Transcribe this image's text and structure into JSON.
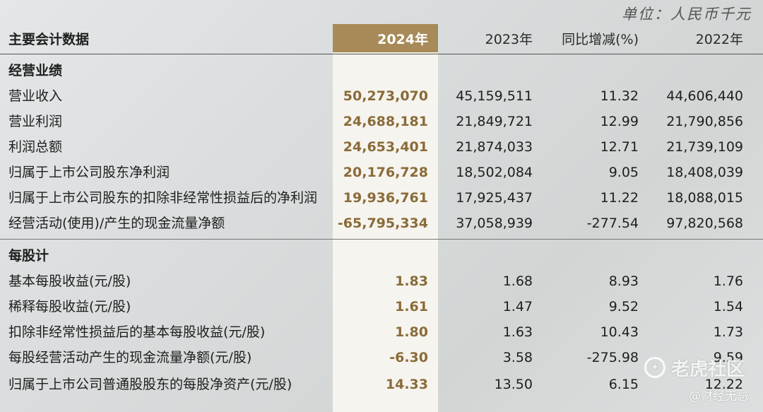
{
  "unit": "单位：人民币千元",
  "header": {
    "label": "主要会计数据",
    "col_2024": "2024年",
    "col_2023": "2023年",
    "col_yoy": "同比增减(%)",
    "col_2022": "2022年"
  },
  "sections": [
    {
      "title": "经营业绩",
      "rows": [
        {
          "label": "营业收入",
          "v2024": "50,273,070",
          "v2023": "45,159,511",
          "yoy": "11.32",
          "v2022": "44,606,440"
        },
        {
          "label": "营业利润",
          "v2024": "24,688,181",
          "v2023": "21,849,721",
          "yoy": "12.99",
          "v2022": "21,790,856"
        },
        {
          "label": "利润总额",
          "v2024": "24,653,401",
          "v2023": "21,874,033",
          "yoy": "12.71",
          "v2022": "21,739,109"
        },
        {
          "label": "归属于上市公司股东净利润",
          "v2024": "20,176,728",
          "v2023": "18,502,084",
          "yoy": "9.05",
          "v2022": "18,408,039"
        },
        {
          "label": "归属于上市公司股东的扣除非经常性损益后的净利润",
          "v2024": "19,936,761",
          "v2023": "17,925,437",
          "yoy": "11.22",
          "v2022": "18,088,015"
        },
        {
          "label": "经营活动(使用)/产生的现金流量净额",
          "v2024": "-65,795,334",
          "v2023": "37,058,939",
          "yoy": "-277.54",
          "v2022": "97,820,568"
        }
      ]
    },
    {
      "title": "每股计",
      "rows": [
        {
          "label": "基本每股收益(元/股)",
          "v2024": "1.83",
          "v2023": "1.68",
          "yoy": "8.93",
          "v2022": "1.76"
        },
        {
          "label": "稀释每股收益(元/股)",
          "v2024": "1.61",
          "v2023": "1.47",
          "yoy": "9.52",
          "v2022": "1.54"
        },
        {
          "label": "扣除非经常性损益后的基本每股收益(元/股)",
          "v2024": "1.80",
          "v2023": "1.63",
          "yoy": "10.43",
          "v2022": "1.73"
        },
        {
          "label": "每股经营活动产生的现金流量净额(元/股)",
          "v2024": "-6.30",
          "v2023": "3.58",
          "yoy": "-275.98",
          "v2022": "9.59"
        },
        {
          "label": "归属于上市公司普通股股东的每股净资产(元/股)",
          "v2024": "14.33",
          "v2023": "13.50",
          "yoy": "6.15",
          "v2022": "12.22"
        }
      ]
    }
  ],
  "watermark": {
    "brand": "老虎社区",
    "handle": "@财经无忌"
  }
}
